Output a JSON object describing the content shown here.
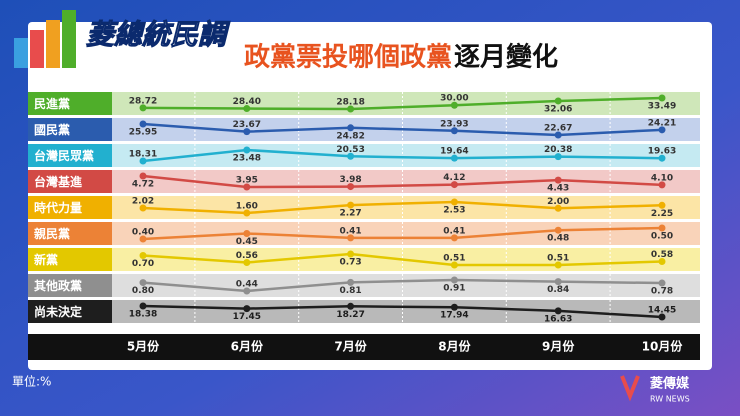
{
  "logo": "菱總統民調",
  "chart_data": {
    "type": "line",
    "title_highlight": "政黨票投哪個政黨",
    "title_rest": "逐月變化",
    "categories": [
      "5月份",
      "6月份",
      "7月份",
      "8月份",
      "9月份",
      "10月份"
    ],
    "series": [
      {
        "name": "民進黨",
        "color": "#4fae2a",
        "band_color": "#cfe7b9",
        "values": [
          28.72,
          28.4,
          28.18,
          30.0,
          32.06,
          33.49
        ],
        "value_labels": [
          "28.72",
          "28.40",
          "28.18",
          "30.00",
          "32.06",
          "33.49"
        ]
      },
      {
        "name": "國民黨",
        "color": "#2b5cae",
        "band_color": "#c3d1ec",
        "values": [
          25.95,
          23.67,
          24.82,
          23.93,
          22.67,
          24.21
        ],
        "value_labels": [
          "25.95",
          "23.67",
          "24.82",
          "23.93",
          "22.67",
          "24.21"
        ]
      },
      {
        "name": "台灣民眾黨",
        "color": "#22b0cf",
        "band_color": "#c5eaf2",
        "values": [
          18.31,
          23.48,
          20.53,
          19.64,
          20.38,
          19.63
        ],
        "value_labels": [
          "18.31",
          "23.48",
          "20.53",
          "19.64",
          "20.38",
          "19.63"
        ]
      },
      {
        "name": "台灣基進",
        "color": "#d24a45",
        "band_color": "#f2c9c7",
        "values": [
          4.72,
          3.95,
          3.98,
          4.12,
          4.43,
          4.1
        ],
        "value_labels": [
          "4.72",
          "3.95",
          "3.98",
          "4.12",
          "4.43",
          "4.10"
        ]
      },
      {
        "name": "時代力量",
        "color": "#f0b000",
        "band_color": "#fce5a6",
        "values": [
          2.02,
          1.6,
          2.27,
          2.53,
          2.0,
          2.25
        ],
        "value_labels": [
          "2.02",
          "1.60",
          "2.27",
          "2.53",
          "2.00",
          "2.25"
        ]
      },
      {
        "name": "親民黨",
        "color": "#ec8236",
        "band_color": "#f9d3b9",
        "values": [
          0.4,
          0.45,
          0.41,
          0.41,
          0.48,
          0.5
        ],
        "value_labels": [
          "0.40",
          "0.45",
          "0.41",
          "0.41",
          "0.48",
          "0.50"
        ]
      },
      {
        "name": "新黨",
        "color": "#e3c800",
        "band_color": "#f9efa3",
        "values": [
          0.7,
          0.56,
          0.73,
          0.51,
          0.51,
          0.58
        ],
        "value_labels": [
          "0.70",
          "0.56",
          "0.73",
          "0.51",
          "0.51",
          "0.58"
        ]
      },
      {
        "name": "其他政黨",
        "color": "#8f8f8f",
        "band_color": "#dedede",
        "values": [
          0.8,
          0.44,
          0.81,
          0.91,
          0.84,
          0.78
        ],
        "value_labels": [
          "0.80",
          "0.44",
          "0.81",
          "0.91",
          "0.84",
          "0.78"
        ]
      },
      {
        "name": "尚未決定",
        "color": "#1e1e1e",
        "band_color": "#b9b9b9",
        "values": [
          18.38,
          17.45,
          18.27,
          17.94,
          16.63,
          14.45
        ],
        "value_labels": [
          "18.38",
          "17.45",
          "18.27",
          "17.94",
          "16.63",
          "14.45"
        ]
      }
    ]
  },
  "unit_note": "單位:%",
  "brand": "菱傳媒",
  "brand_sub": "RW NEWS"
}
